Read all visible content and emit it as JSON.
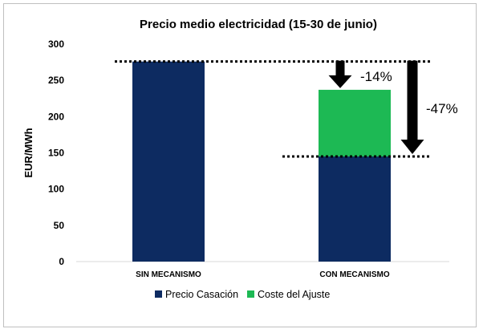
{
  "chart_data": {
    "type": "bar",
    "stacked": true,
    "title": "Precio medio electricidad (15-30 de junio)",
    "xlabel": "",
    "ylabel": "EUR/MWh",
    "ylim": [
      0,
      300
    ],
    "yticks": [
      0,
      50,
      100,
      150,
      200,
      250,
      300
    ],
    "categories": [
      "SIN MECANISMO",
      "CON MECANISMO"
    ],
    "series": [
      {
        "name": "Precio Casación",
        "values": [
          276,
          145
        ],
        "color": "#0d2b61"
      },
      {
        "name": "Coste del Ajuste",
        "values": [
          0,
          92
        ],
        "color": "#1db954"
      }
    ],
    "legend_position": "bottom",
    "reference_lines": [
      {
        "value": 276,
        "style": "dotted"
      },
      {
        "value": 145,
        "style": "dotted"
      }
    ],
    "annotations": [
      {
        "text": "-14%",
        "from": 276,
        "to": 237
      },
      {
        "text": "-47%",
        "from": 276,
        "to": 145
      }
    ]
  }
}
